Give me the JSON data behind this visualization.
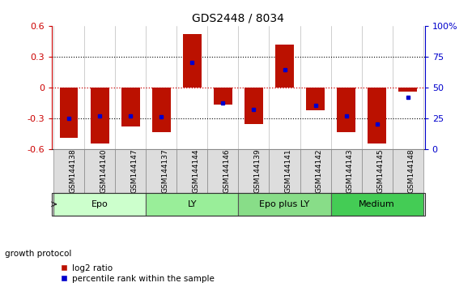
{
  "title": "GDS2448 / 8034",
  "samples": [
    "GSM144138",
    "GSM144140",
    "GSM144147",
    "GSM144137",
    "GSM144144",
    "GSM144146",
    "GSM144139",
    "GSM144141",
    "GSM144142",
    "GSM144143",
    "GSM144145",
    "GSM144148"
  ],
  "log2_ratios": [
    -0.49,
    -0.55,
    -0.38,
    -0.44,
    0.52,
    -0.17,
    -0.36,
    0.42,
    -0.22,
    -0.44,
    -0.55,
    -0.04
  ],
  "percentile_ranks": [
    25,
    27,
    27,
    26,
    70,
    37,
    32,
    64,
    35,
    27,
    20,
    42
  ],
  "groups": [
    {
      "label": "Epo",
      "start": 0,
      "end": 2,
      "color": "#ccffcc"
    },
    {
      "label": "LY",
      "start": 3,
      "end": 5,
      "color": "#99ee99"
    },
    {
      "label": "Epo plus LY",
      "start": 6,
      "end": 8,
      "color": "#88dd88"
    },
    {
      "label": "Medium",
      "start": 9,
      "end": 11,
      "color": "#44cc55"
    }
  ],
  "bar_color": "#bb1100",
  "dot_color": "#0000cc",
  "ylim_left": [
    -0.6,
    0.6
  ],
  "ylim_right": [
    0,
    100
  ],
  "yticks_left": [
    -0.6,
    -0.3,
    0.0,
    0.3,
    0.6
  ],
  "yticks_right": [
    0,
    25,
    50,
    75,
    100
  ],
  "left_axis_color": "#cc0000",
  "right_axis_color": "#0000cc",
  "zero_line_color": "#cc0000",
  "grid_line_color": "#000000",
  "cell_bg_color": "#dddddd",
  "cell_edge_color": "#888888",
  "legend_log2": "log2 ratio",
  "legend_pct": "percentile rank within the sample",
  "group_protocol_label": "growth protocol"
}
